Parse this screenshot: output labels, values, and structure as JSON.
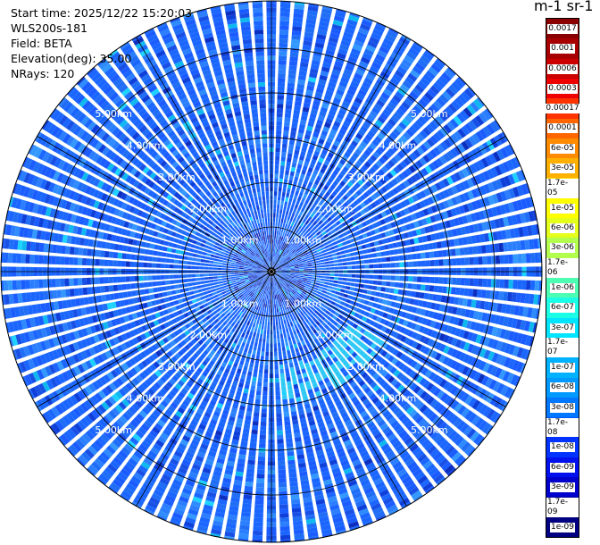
{
  "header": {
    "start_time": "Start time: 2025/12/22 15:20:03",
    "instrument": "WLS200s-181",
    "field": "Field: BETA",
    "elevation": "Elevation(deg): 35.00",
    "nrays": "NRays: 120"
  },
  "colorbar": {
    "title": "m-1 sr-1",
    "labels": [
      "0.0017",
      "0.001",
      "0.0006",
      "0.0003",
      "0.00017",
      "0.0001",
      "6e-05",
      "3e-05",
      "1.7e-05",
      "1e-05",
      "6e-06",
      "3e-06",
      "1.7e-06",
      "1e-06",
      "6e-07",
      "3e-07",
      "1.7e-07",
      "1e-07",
      "6e-08",
      "3e-08",
      "1.7e-08",
      "1e-08",
      "6e-09",
      "3e-09",
      "1.7e-09",
      "1e-09"
    ],
    "colors": [
      "#8b0000",
      "#a80000",
      "#cc0000",
      "#ee0000",
      "#ff3300",
      "#ff6600",
      "#ff8c00",
      "#ffb000",
      "#ffd700",
      "#ffff00",
      "#e6ff1a",
      "#b3ff4d",
      "#80ff80",
      "#4dffb3",
      "#1affe6",
      "#00e5ff",
      "#00ccff",
      "#00b2ff",
      "#0099ff",
      "#0077ff",
      "#0055ff",
      "#0033ff",
      "#0011ee",
      "#0000cc",
      "#0000a0",
      "#000080"
    ]
  },
  "chart_data": {
    "type": "heatmap",
    "projection": "polar-ppi",
    "field": "BETA",
    "units": "m-1 sr-1",
    "n_rays": 120,
    "elevation_deg": 35.0,
    "range_km": [
      0,
      5.0
    ],
    "range_rings_km": [
      1,
      2,
      3,
      4,
      5
    ],
    "ring_labels": [
      "1.00km",
      "2.00km",
      "3.00km",
      "4.00km",
      "5.00km"
    ],
    "scale": "log",
    "vmin": 1e-09,
    "vmax": 0.0017,
    "dominant_value_range": [
      3e-08,
      1.7e-07
    ],
    "grid": true
  }
}
